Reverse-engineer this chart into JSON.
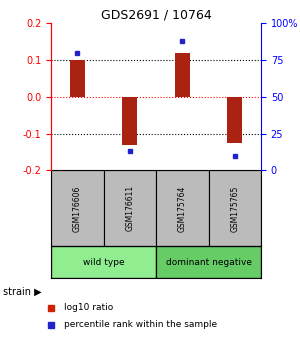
{
  "title": "GDS2691 / 10764",
  "samples": [
    "GSM176606",
    "GSM176611",
    "GSM175764",
    "GSM175765"
  ],
  "log10_ratio": [
    0.1,
    -0.13,
    0.12,
    -0.125
  ],
  "percentile_rank": [
    80,
    13,
    88,
    10
  ],
  "bar_color": "#aa2211",
  "dot_color": "#2222cc",
  "ylim": [
    -0.2,
    0.2
  ],
  "yticks_left": [
    -0.2,
    -0.1,
    0.0,
    0.1,
    0.2
  ],
  "yticks_right": [
    0,
    25,
    50,
    75,
    100
  ],
  "hlines_black": [
    -0.1,
    0.1
  ],
  "hline_red": 0.0,
  "groups": [
    {
      "label": "wild type",
      "samples": [
        0,
        1
      ],
      "color": "#90ee90"
    },
    {
      "label": "dominant negative",
      "samples": [
        2,
        3
      ],
      "color": "#66cc66"
    }
  ],
  "strain_label": "strain",
  "legend_items": [
    {
      "color": "#cc2200",
      "label": "log10 ratio"
    },
    {
      "color": "#2222cc",
      "label": "percentile rank within the sample"
    }
  ],
  "background_color": "#ffffff",
  "label_bg": "#bbbbbb"
}
